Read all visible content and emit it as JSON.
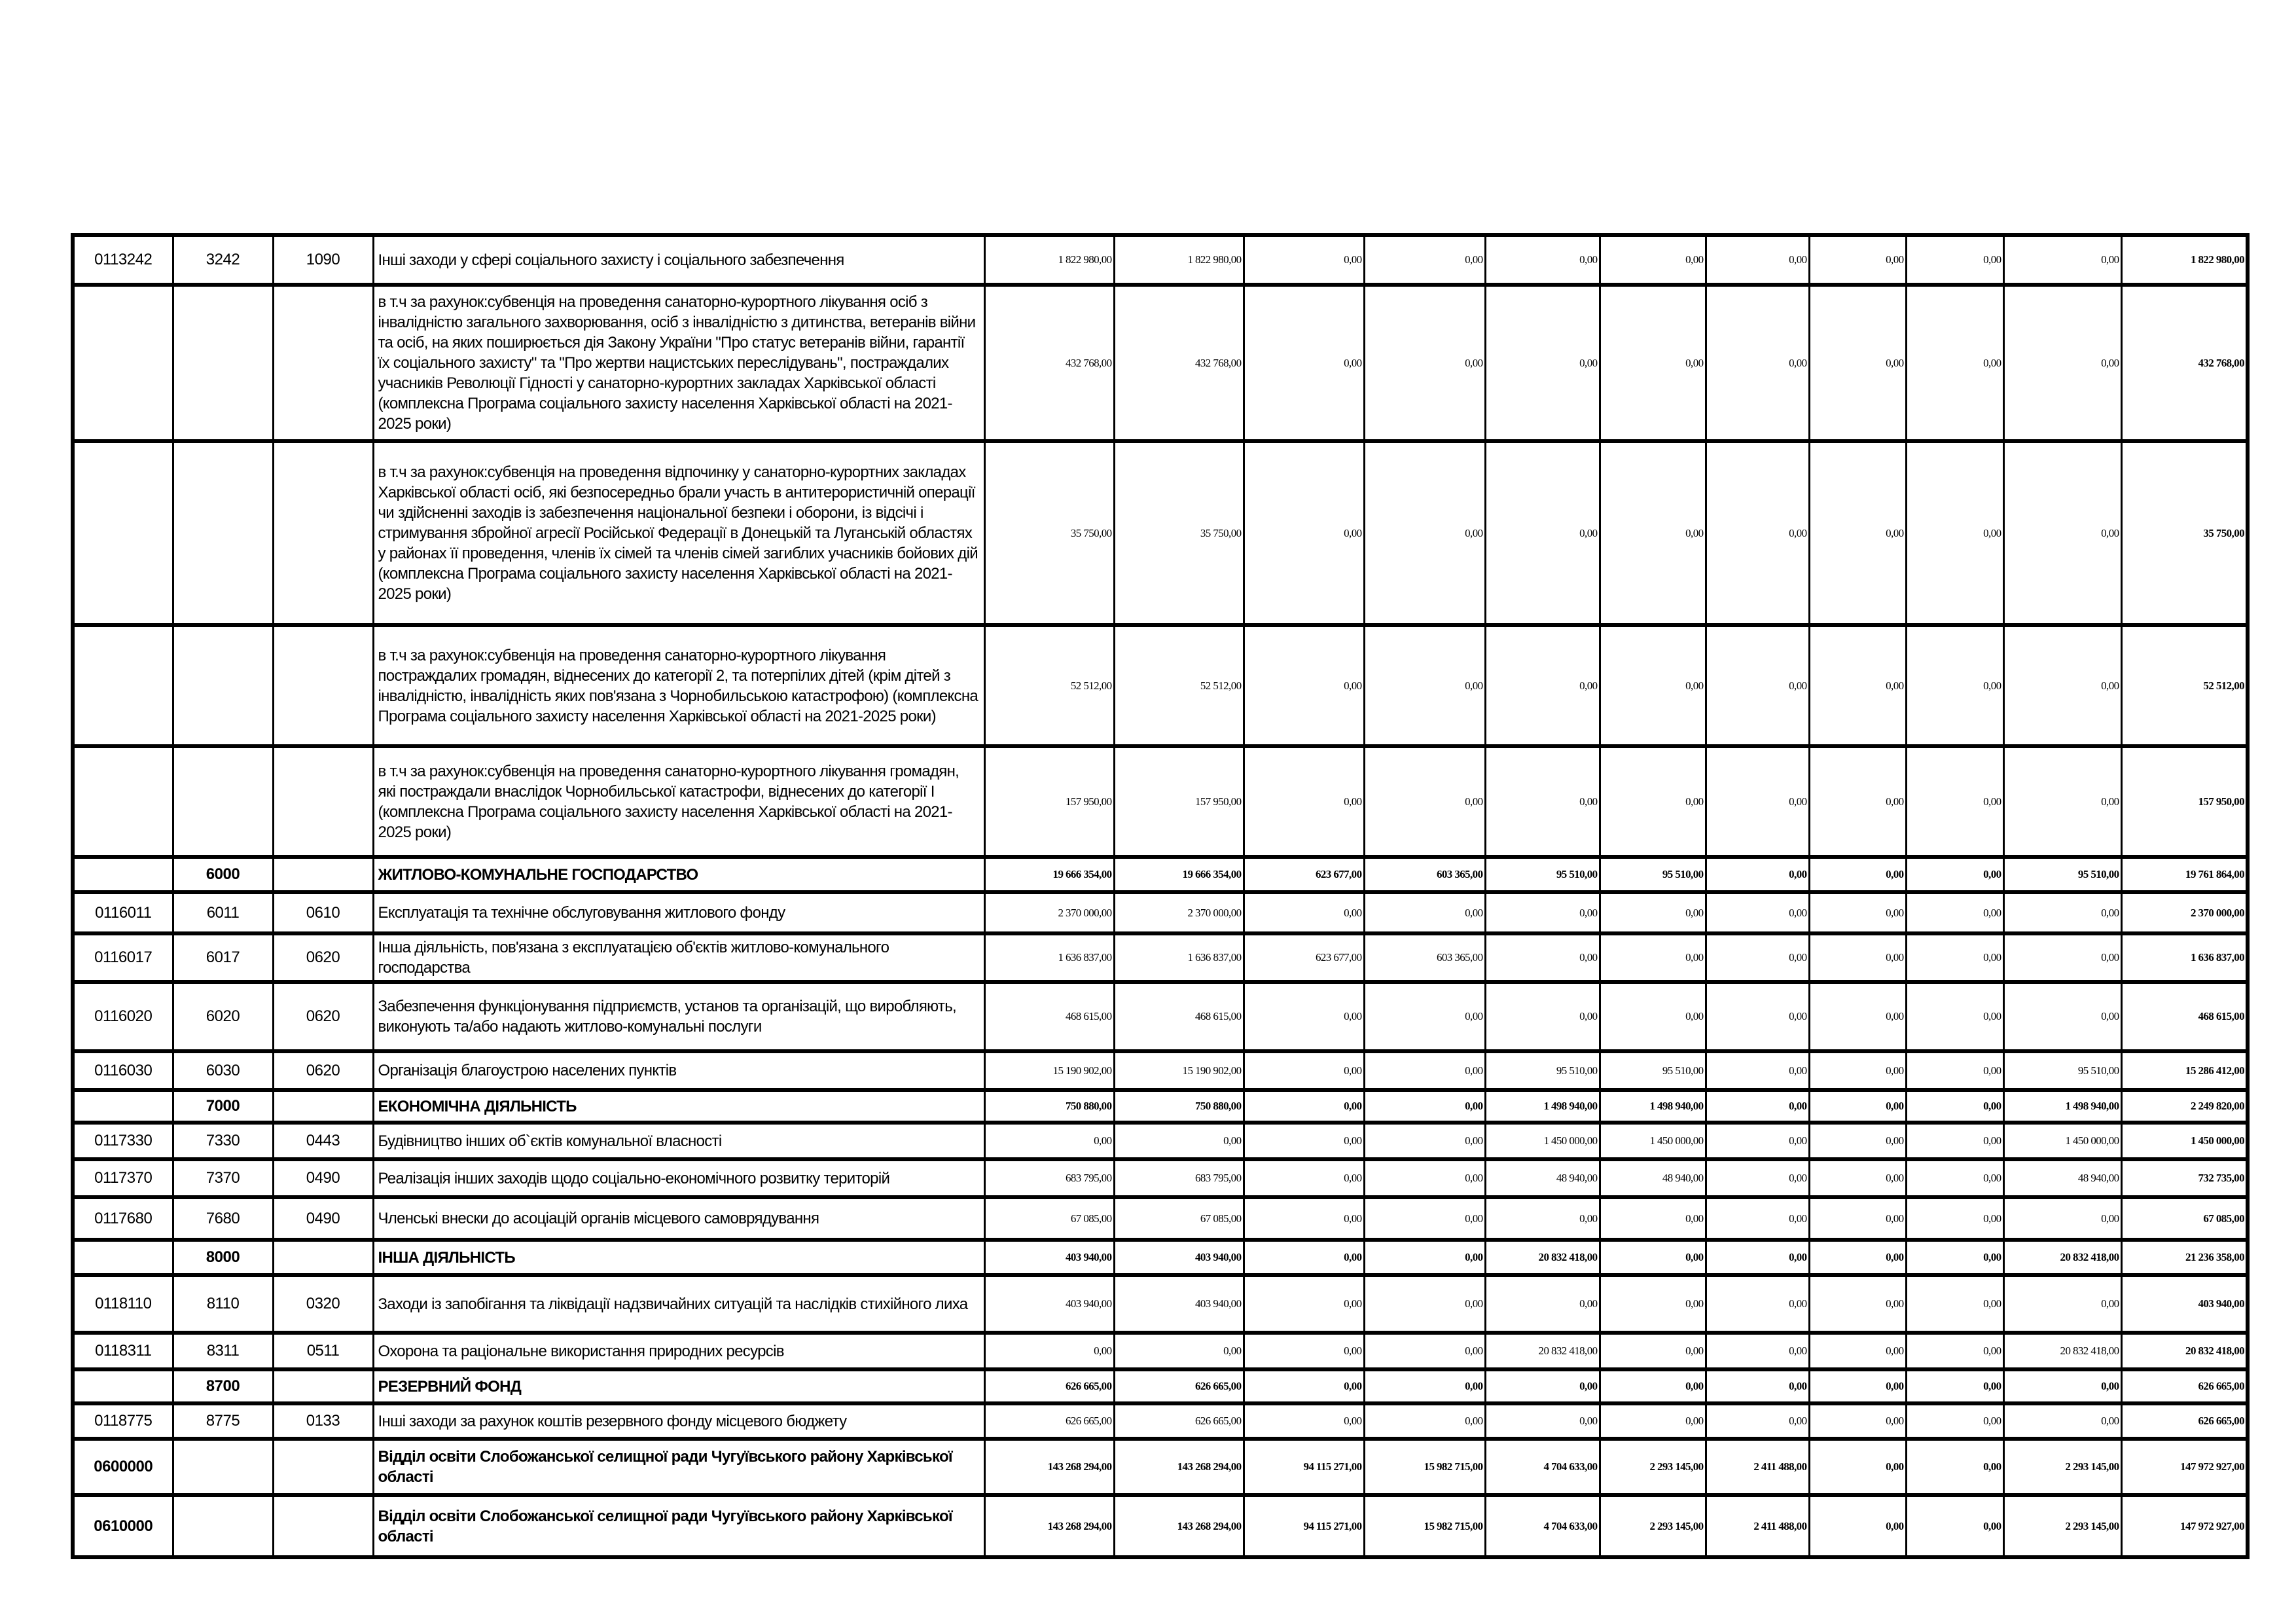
{
  "rows": [
    {
      "program": "0113242",
      "kfk": "3242",
      "kfkvk": "1090",
      "name": "Інші заходи у сфері соціального захисту і соціального забезпечення",
      "values": [
        "1 822 980,00",
        "1 822 980,00",
        "0,00",
        "0,00",
        "0,00",
        "0,00",
        "0,00",
        "0,00",
        "0,00",
        "0,00",
        "1 822 980,00"
      ],
      "type": "item"
    },
    {
      "program": "",
      "kfk": "",
      "kfkvk": "",
      "name": "в т.ч за рахунок:субвенція на проведення санаторно-курортного лікування осіб з інвалідністю загального захворювання, осіб з інвалідністю з дитинства, ветеранів війни та осіб, на яких поширюється дія Закону України \"Про статус ветеранів війни, гарантії їх соціального захисту\" та \"Про жертви нацистських переслідувань\", постраждалих учасників Революції Гідності у санаторно-курортних закладах Харківської області (комплексна Програма соціального захисту населення Харківської області на 2021-2025 роки)",
      "values": [
        "432 768,00",
        "432 768,00",
        "0,00",
        "0,00",
        "0,00",
        "0,00",
        "0,00",
        "0,00",
        "0,00",
        "0,00",
        "432 768,00"
      ],
      "type": "item"
    },
    {
      "program": "",
      "kfk": "",
      "kfkvk": "",
      "name": "в т.ч за рахунок:субвенція на проведення відпочинку у санаторно-курортних закладах Харківської області осіб, які безпосередньо брали участь в антитерористичній операції чи здійсненні заходів із забезпечення національної безпеки і оборони, із відсічі і стримування збройної агресії Російської Федерації в Донецькій та Луганській областях у районах її проведення, членів їх сімей та членів сімей загиблих учасників бойових дій (комплексна Програма соціального захисту населення Харківської області на 2021-2025 роки)",
      "values": [
        "35 750,00",
        "35 750,00",
        "0,00",
        "0,00",
        "0,00",
        "0,00",
        "0,00",
        "0,00",
        "0,00",
        "0,00",
        "35 750,00"
      ],
      "type": "item"
    },
    {
      "program": "",
      "kfk": "",
      "kfkvk": "",
      "name": "в т.ч за рахунок:субвенція на проведення санаторно-курортного лікування постраждалих громадян, віднесених до категорії 2, та потерпілих дітей (крім дітей з інвалідністю, інвалідність яких пов'язана з Чорнобильською катастрофою)  (комплексна Програма соціального захисту населення Харківської області на 2021-2025 роки)",
      "values": [
        "52 512,00",
        "52 512,00",
        "0,00",
        "0,00",
        "0,00",
        "0,00",
        "0,00",
        "0,00",
        "0,00",
        "0,00",
        "52 512,00"
      ],
      "type": "item"
    },
    {
      "program": "",
      "kfk": "",
      "kfkvk": "",
      "name": "в т.ч за рахунок:субвенція на проведення санаторно-курортного лікування громадян, які постраждали внаслідок  Чорнобильської катастрофи, віднесених до категорії І (комплексна Програма соціального захисту населення Харківської області на 2021-2025 роки)",
      "values": [
        "157 950,00",
        "157 950,00",
        "0,00",
        "0,00",
        "0,00",
        "0,00",
        "0,00",
        "0,00",
        "0,00",
        "0,00",
        "157 950,00"
      ],
      "type": "item"
    },
    {
      "program": "",
      "kfk": "6000",
      "kfkvk": "",
      "name": "ЖИТЛОВО-КОМУНАЛЬНЕ ГОСПОДАРСТВО",
      "values": [
        "19 666 354,00",
        "19 666 354,00",
        "623 677,00",
        "603 365,00",
        "95 510,00",
        "95 510,00",
        "0,00",
        "0,00",
        "0,00",
        "95 510,00",
        "19 761 864,00"
      ],
      "type": "group"
    },
    {
      "program": "0116011",
      "kfk": "6011",
      "kfkvk": "0610",
      "name": "Експлуатація та технічне обслуговування житлового фонду",
      "values": [
        "2 370 000,00",
        "2 370 000,00",
        "0,00",
        "0,00",
        "0,00",
        "0,00",
        "0,00",
        "0,00",
        "0,00",
        "0,00",
        "2 370 000,00"
      ],
      "type": "item"
    },
    {
      "program": "0116017",
      "kfk": "6017",
      "kfkvk": "0620",
      "name": "Інша діяльність, пов'язана з експлуатацією об'єктів житлово-комунального господарства",
      "values": [
        "1 636 837,00",
        "1 636 837,00",
        "623 677,00",
        "603 365,00",
        "0,00",
        "0,00",
        "0,00",
        "0,00",
        "0,00",
        "0,00",
        "1 636 837,00"
      ],
      "type": "item"
    },
    {
      "program": "0116020",
      "kfk": "6020",
      "kfkvk": "0620",
      "name": "Забезпечення функціонування підприємств, установ та організацій, що виробляють, виконують та/або надають житлово-комунальні послуги",
      "values": [
        "468 615,00",
        "468 615,00",
        "0,00",
        "0,00",
        "0,00",
        "0,00",
        "0,00",
        "0,00",
        "0,00",
        "0,00",
        "468 615,00"
      ],
      "type": "item"
    },
    {
      "program": "0116030",
      "kfk": "6030",
      "kfkvk": "0620",
      "name": "Організація благоустрою населених пунктів",
      "values": [
        "15 190 902,00",
        "15 190 902,00",
        "0,00",
        "0,00",
        "95 510,00",
        "95 510,00",
        "0,00",
        "0,00",
        "0,00",
        "95 510,00",
        "15 286 412,00"
      ],
      "type": "item"
    },
    {
      "program": "",
      "kfk": "7000",
      "kfkvk": "",
      "name": "ЕКОНОМІЧНА ДІЯЛЬНІСТЬ",
      "values": [
        "750 880,00",
        "750 880,00",
        "0,00",
        "0,00",
        "1 498 940,00",
        "1 498 940,00",
        "0,00",
        "0,00",
        "0,00",
        "1 498 940,00",
        "2 249 820,00"
      ],
      "type": "group"
    },
    {
      "program": "0117330",
      "kfk": "7330",
      "kfkvk": "0443",
      "name": "Будівництво інших об`єктів комунальної власності",
      "values": [
        "0,00",
        "0,00",
        "0,00",
        "0,00",
        "1 450 000,00",
        "1 450 000,00",
        "0,00",
        "0,00",
        "0,00",
        "1 450 000,00",
        "1 450 000,00"
      ],
      "type": "item"
    },
    {
      "program": "0117370",
      "kfk": "7370",
      "kfkvk": "0490",
      "name": "Реалізація інших заходів щодо соціально-економічного розвитку територій",
      "values": [
        "683 795,00",
        "683 795,00",
        "0,00",
        "0,00",
        "48 940,00",
        "48 940,00",
        "0,00",
        "0,00",
        "0,00",
        "48 940,00",
        "732 735,00"
      ],
      "type": "item"
    },
    {
      "program": "0117680",
      "kfk": "7680",
      "kfkvk": "0490",
      "name": "Членські внески до асоціацій органів місцевого самоврядування",
      "values": [
        "67 085,00",
        "67 085,00",
        "0,00",
        "0,00",
        "0,00",
        "0,00",
        "0,00",
        "0,00",
        "0,00",
        "0,00",
        "67 085,00"
      ],
      "type": "item"
    },
    {
      "program": "",
      "kfk": "8000",
      "kfkvk": "",
      "name": "ІНША ДІЯЛЬНІСТЬ",
      "values": [
        "403 940,00",
        "403 940,00",
        "0,00",
        "0,00",
        "20 832 418,00",
        "0,00",
        "0,00",
        "0,00",
        "0,00",
        "20 832 418,00",
        "21 236 358,00"
      ],
      "type": "group"
    },
    {
      "program": "0118110",
      "kfk": "8110",
      "kfkvk": "0320",
      "name": "Заходи із запобігання та ліквідації надзвичайних ситуацій та наслідків стихійного лиха",
      "values": [
        "403 940,00",
        "403 940,00",
        "0,00",
        "0,00",
        "0,00",
        "0,00",
        "0,00",
        "0,00",
        "0,00",
        "0,00",
        "403 940,00"
      ],
      "type": "item"
    },
    {
      "program": "0118311",
      "kfk": "8311",
      "kfkvk": "0511",
      "name": "Охорона та раціональне використання природних ресурсів",
      "values": [
        "0,00",
        "0,00",
        "0,00",
        "0,00",
        "20 832 418,00",
        "0,00",
        "0,00",
        "0,00",
        "0,00",
        "20 832 418,00",
        "20 832 418,00"
      ],
      "type": "item"
    },
    {
      "program": "",
      "kfk": "8700",
      "kfkvk": "",
      "name": "РЕЗЕРВНИЙ ФОНД",
      "values": [
        "626 665,00",
        "626 665,00",
        "0,00",
        "0,00",
        "0,00",
        "0,00",
        "0,00",
        "0,00",
        "0,00",
        "0,00",
        "626 665,00"
      ],
      "type": "group"
    },
    {
      "program": "0118775",
      "kfk": "8775",
      "kfkvk": "0133",
      "name": "Інші заходи за рахунок коштів резервного фонду місцевого бюджету",
      "values": [
        "626 665,00",
        "626 665,00",
        "0,00",
        "0,00",
        "0,00",
        "0,00",
        "0,00",
        "0,00",
        "0,00",
        "0,00",
        "626 665,00"
      ],
      "type": "item"
    },
    {
      "program": "0600000",
      "kfk": "",
      "kfkvk": "",
      "name": "Відділ освіти Слобожанської селищної ради Чугуївського району Харківської області",
      "values": [
        "143 268 294,00",
        "143 268 294,00",
        "94 115 271,00",
        "15 982 715,00",
        "4 704 633,00",
        "2 293 145,00",
        "2 411 488,00",
        "0,00",
        "0,00",
        "2 293 145,00",
        "147 972 927,00"
      ],
      "type": "group"
    },
    {
      "program": "0610000",
      "kfk": "",
      "kfkvk": "",
      "name": "Відділ освіти Слобожанської селищної ради Чугуївського району Харківської області",
      "values": [
        "143 268 294,00",
        "143 268 294,00",
        "94 115 271,00",
        "15 982 715,00",
        "4 704 633,00",
        "2 293 145,00",
        "2 411 488,00",
        "0,00",
        "0,00",
        "2 293 145,00",
        "147 972 927,00"
      ],
      "type": "group"
    }
  ]
}
